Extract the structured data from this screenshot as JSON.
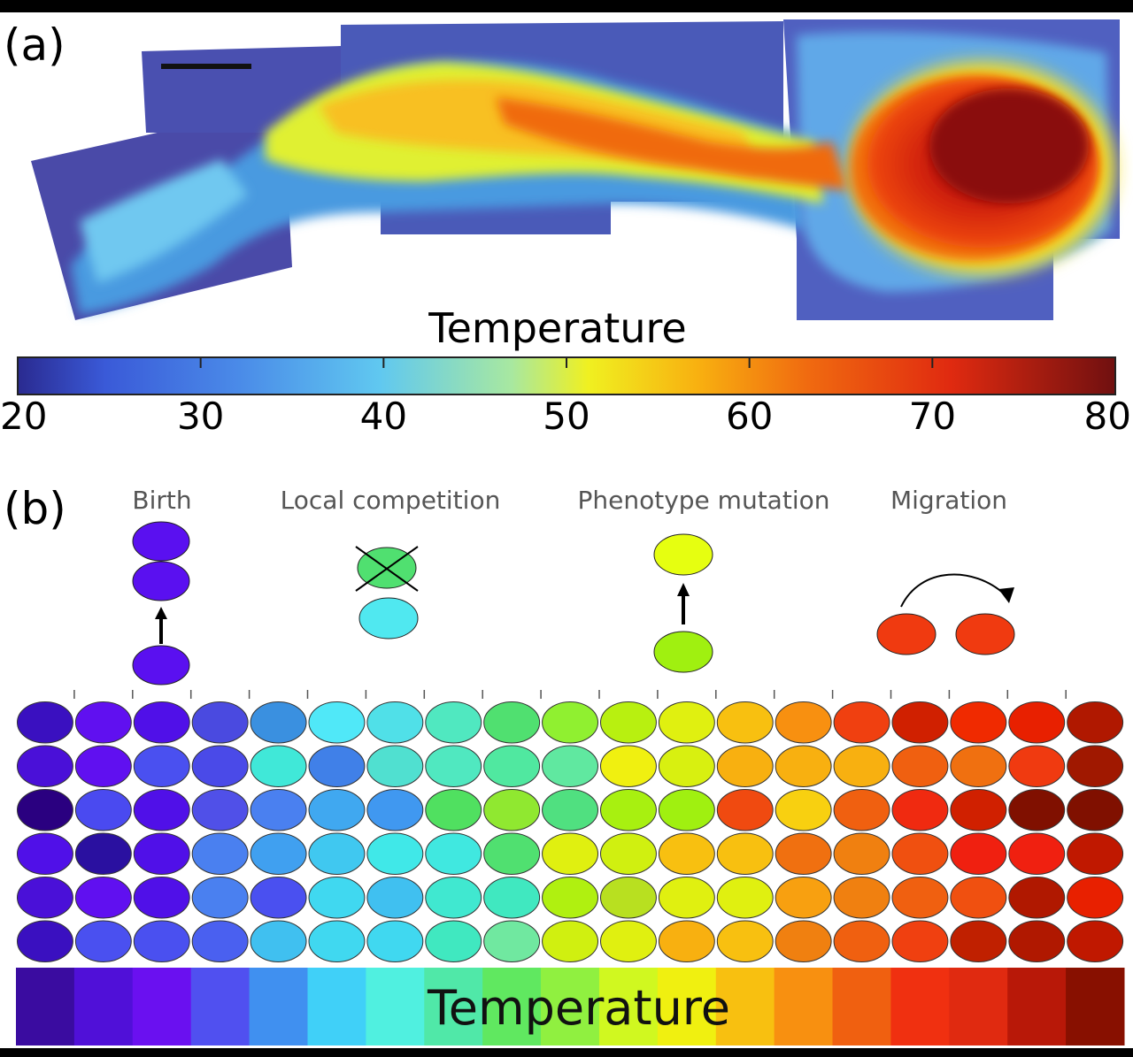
{
  "panel_a": {
    "label": "(a)",
    "colorbar": {
      "title": "Temperature",
      "ticks": [
        "20",
        "30",
        "40",
        "50",
        "60",
        "70",
        "80"
      ],
      "range": [
        20,
        80
      ]
    }
  },
  "panel_b": {
    "label": "(b)",
    "processes": [
      {
        "label": "Birth",
        "color": "#5a10f0"
      },
      {
        "label": "Local competition",
        "color": "#50e070"
      },
      {
        "label": "Phenotype mutation",
        "color": "#e6ff10"
      },
      {
        "label": "Migration",
        "color": "#f03a10"
      }
    ],
    "grid": {
      "columns": 19,
      "rows": 6,
      "colors": [
        [
          "#3a10c0",
          "#6010f0",
          "#5010e8",
          "#4a4ae0",
          "#3a90e0",
          "#50e8f8",
          "#50e0e8",
          "#50e8c0",
          "#50e070",
          "#90f030",
          "#b8f010",
          "#e0f010",
          "#f8c010",
          "#f89010",
          "#f04010",
          "#d02000",
          "#f02a00",
          "#e82000",
          "#b01800"
        ],
        [
          "#4a10d8",
          "#6010f0",
          "#4a50f0",
          "#4a4ae8",
          "#40e8d8",
          "#4080e8",
          "#50e0d0",
          "#50e8c0",
          "#50e8a0",
          "#60e8a0",
          "#f0f010",
          "#d8f010",
          "#f8b010",
          "#f8b010",
          "#f8b010",
          "#f06010",
          "#f07010",
          "#f03a10",
          "#a01800"
        ],
        [
          "#2a0080",
          "#4a4af0",
          "#5010e8",
          "#5050e8",
          "#4a80f0",
          "#40a8f0",
          "#4098f0",
          "#50e060",
          "#90e830",
          "#50e080",
          "#a8f010",
          "#a0f010",
          "#f04a10",
          "#f8d010",
          "#f06010",
          "#f02a10",
          "#d02000",
          "#801000",
          "#801000"
        ],
        [
          "#5010e8",
          "#2a10a0",
          "#5010e8",
          "#4a80f0",
          "#40a0f0",
          "#40c8f0",
          "#40e8e8",
          "#40e8e0",
          "#50e070",
          "#e0f010",
          "#d0f010",
          "#f8c010",
          "#f8c010",
          "#f07010",
          "#f08010",
          "#f05010",
          "#f02010",
          "#f02010",
          "#c01800"
        ],
        [
          "#4a10d8",
          "#6010f0",
          "#5010e8",
          "#4a80f0",
          "#4a50f0",
          "#40d8f0",
          "#40c0f0",
          "#40e8d0",
          "#40e8c0",
          "#b0f010",
          "#b8e020",
          "#e0f010",
          "#e0f010",
          "#f8a010",
          "#f08010",
          "#f06010",
          "#f05010",
          "#b01800",
          "#e82000"
        ],
        [
          "#3a10c0",
          "#4a50f0",
          "#4a50f0",
          "#4a60f0",
          "#40c0f0",
          "#40d8f0",
          "#40d8f0",
          "#40e8c0",
          "#70e8a0",
          "#d0f010",
          "#e0f010",
          "#f8b010",
          "#f8c010",
          "#f08010",
          "#f06010",
          "#f04010",
          "#c02000",
          "#b01800",
          "#c01800"
        ]
      ]
    },
    "temperature_bar": {
      "label": "Temperature",
      "colors": [
        "#3a0ca0",
        "#5010d8",
        "#6a10f0",
        "#5050f0",
        "#4090f0",
        "#40d0f8",
        "#50f0e0",
        "#50e8a8",
        "#60e860",
        "#90f040",
        "#d0f820",
        "#f0f010",
        "#f8c010",
        "#f89010",
        "#f06010",
        "#f03010",
        "#e02a10",
        "#b81808",
        "#881000"
      ]
    }
  }
}
